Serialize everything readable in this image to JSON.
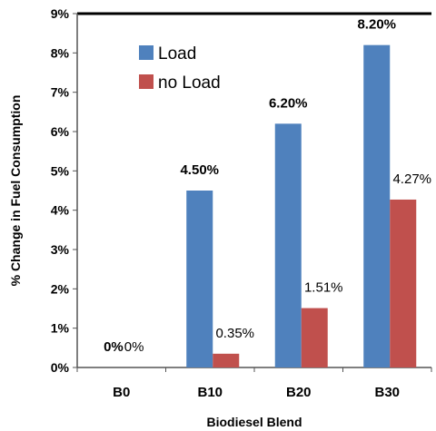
{
  "chart_data": {
    "type": "bar",
    "title": "",
    "xlabel": "Biodiesel Blend",
    "ylabel": "% Change in Fuel Consumption",
    "categories": [
      "B0",
      "B10",
      "B20",
      "B30"
    ],
    "ylim": [
      0,
      9
    ],
    "yticks": [
      "0%",
      "1%",
      "2%",
      "3%",
      "4%",
      "5%",
      "6%",
      "7%",
      "8%",
      "9%"
    ],
    "grid": false,
    "legend_position": "top-left",
    "series": [
      {
        "name": "Load",
        "color": "#4F81BD",
        "values": [
          0,
          4.5,
          6.2,
          8.2
        ],
        "labels": [
          "0%",
          "4.50%",
          "6.20%",
          "8.20%"
        ],
        "label_weight": "bold"
      },
      {
        "name": "no Load",
        "color": "#C0504D",
        "values": [
          0,
          0.35,
          1.51,
          4.27
        ],
        "labels": [
          "0%",
          "0.35%",
          "1.51%",
          "4.27%"
        ],
        "label_weight": "normal"
      }
    ]
  }
}
